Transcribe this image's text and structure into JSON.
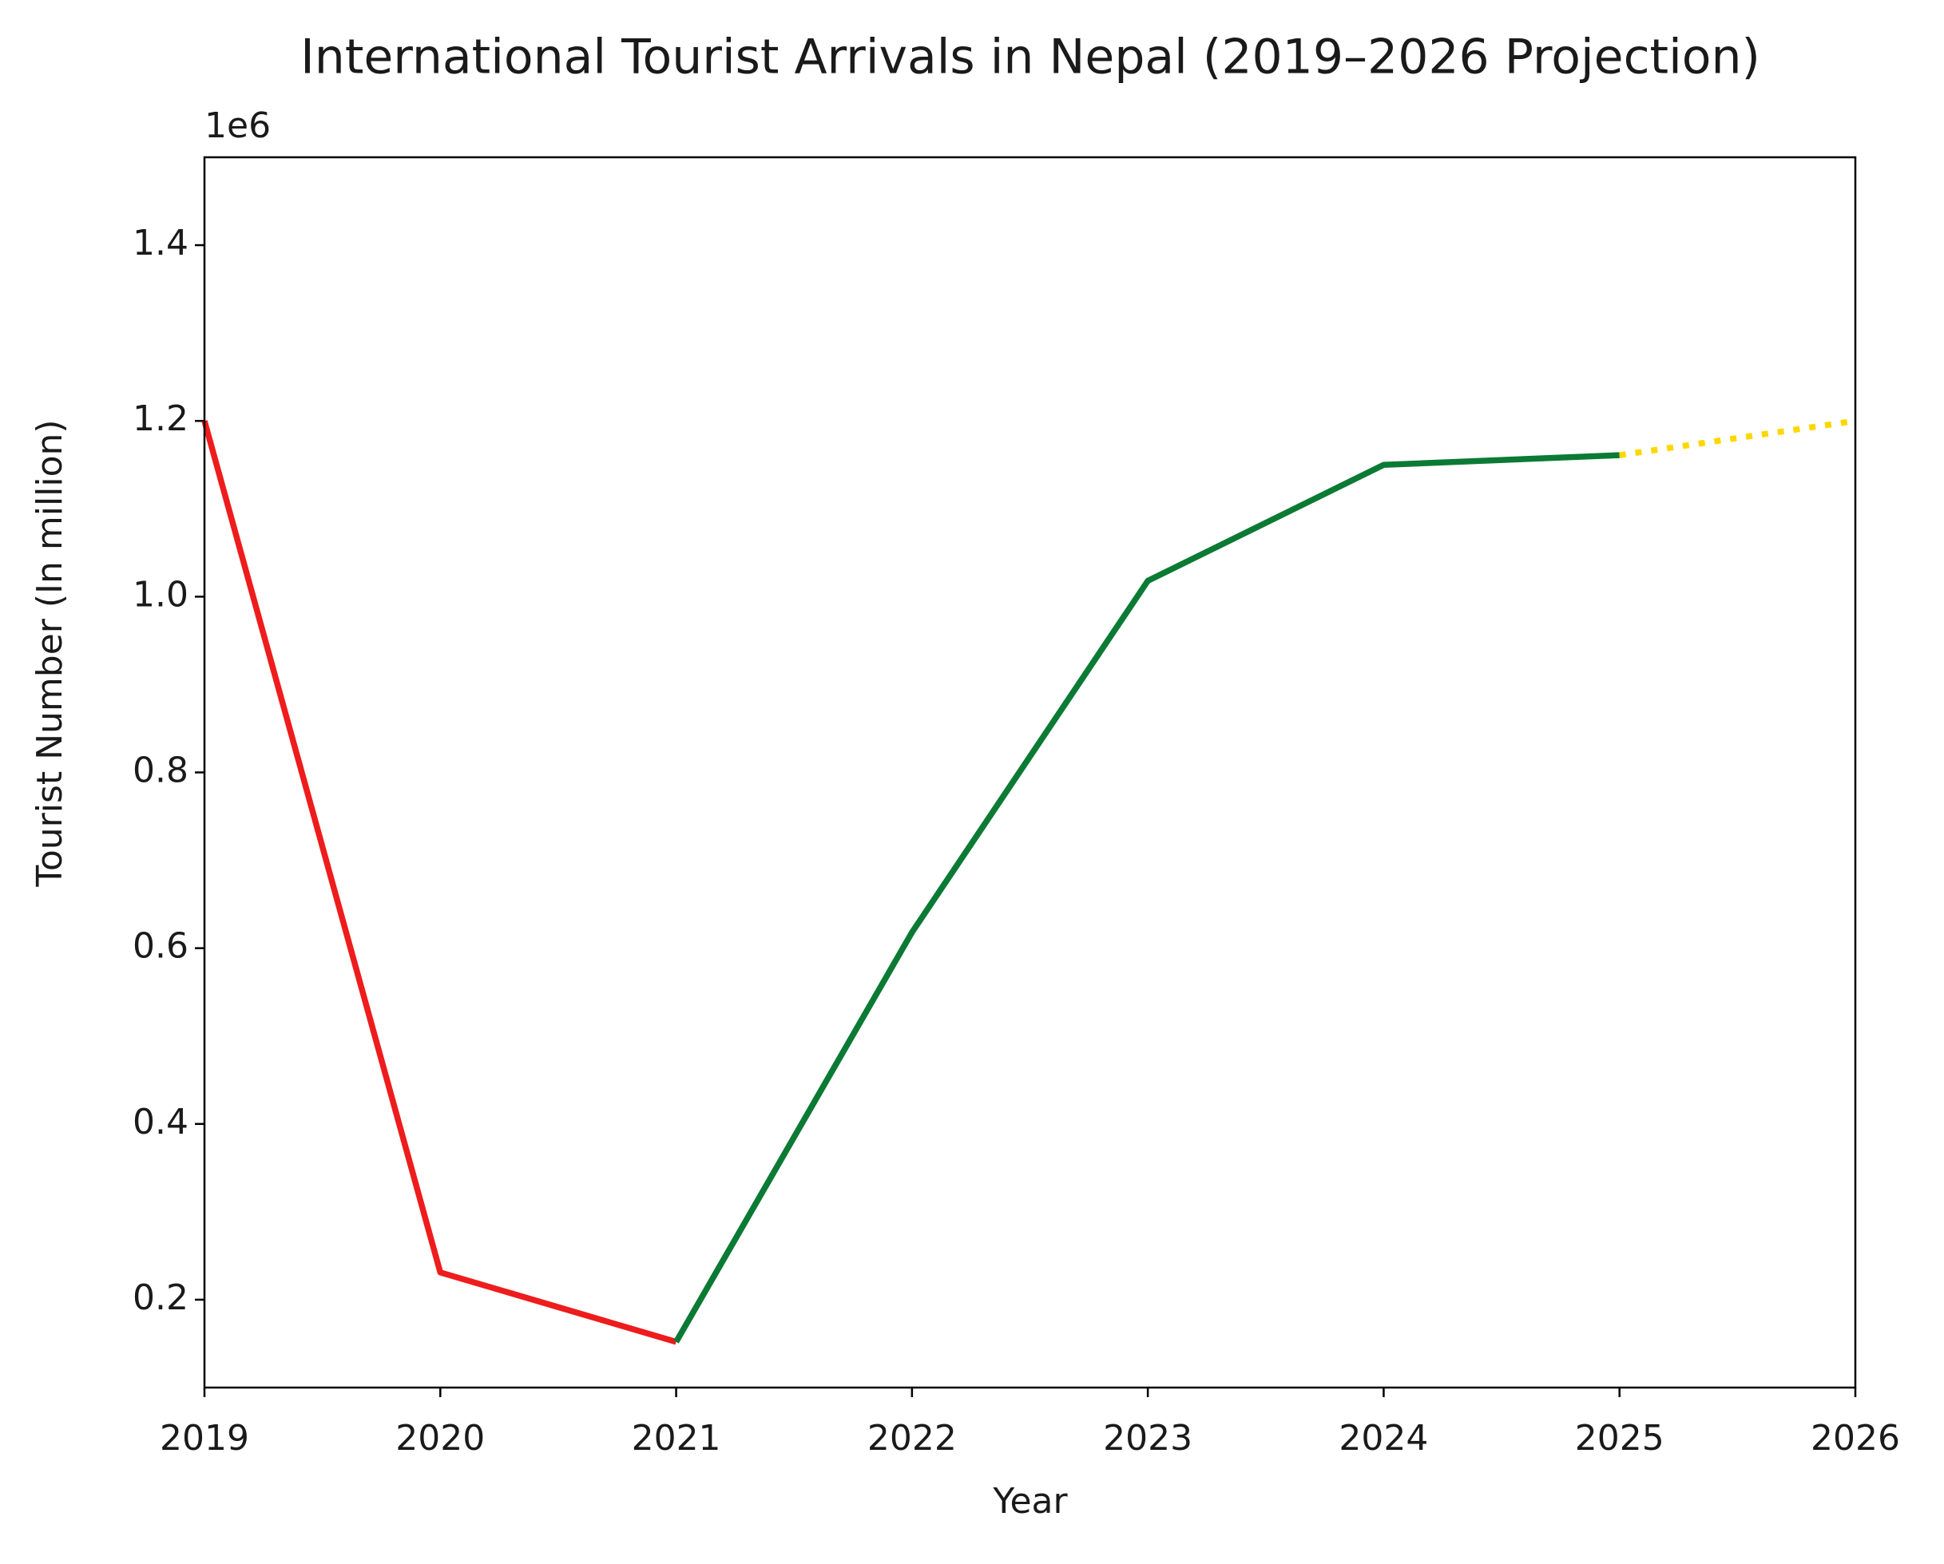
{
  "chart_data": {
    "type": "line",
    "title": "International Tourist Arrivals in Nepal (2019–2026 Projection)",
    "xlabel": "Year",
    "ylabel": "Tourist Number   (In million)",
    "y_offset_label": "1e6",
    "series": [
      {
        "color": "#ee1c1c",
        "linestyle": "solid",
        "x": [
          2019,
          2020,
          2021
        ],
        "values": [
          1200000,
          231000,
          152000
        ]
      },
      {
        "color": "#0b7a34",
        "linestyle": "solid",
        "x": [
          2021,
          2022,
          2023,
          2024,
          2025
        ],
        "values": [
          152000,
          618000,
          1018000,
          1150000,
          1161000
        ]
      },
      {
        "color": "#ffd700",
        "linestyle": "dotted",
        "x": [
          2025,
          2026
        ],
        "values": [
          1161000,
          1200000
        ]
      }
    ],
    "xlim": [
      2019,
      2026
    ],
    "xticks": [
      2019,
      2020,
      2021,
      2022,
      2023,
      2024,
      2025,
      2026
    ],
    "ylim": [
      100000,
      1500000
    ],
    "yticks": [
      {
        "value": 200000,
        "label": "0.2"
      },
      {
        "value": 400000,
        "label": "0.4"
      },
      {
        "value": 600000,
        "label": "0.6"
      },
      {
        "value": 800000,
        "label": "0.8"
      },
      {
        "value": 1000000,
        "label": "1.0"
      },
      {
        "value": 1200000,
        "label": "1.2"
      },
      {
        "value": 1400000,
        "label": "1.4"
      }
    ],
    "grid": false
  }
}
